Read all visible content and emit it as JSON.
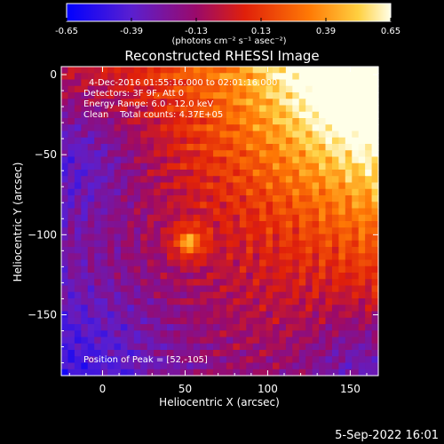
{
  "chart_data": {
    "type": "heatmap",
    "title": "Reconstructed RHESSI Image",
    "xlabel": "Heliocentric X (arcsec)",
    "ylabel": "Heliocentric Y (arcsec)",
    "xlim": [
      -25,
      167
    ],
    "ylim": [
      -188,
      5
    ],
    "x_ticks": [
      0,
      50,
      100,
      150
    ],
    "y_ticks": [
      0,
      -50,
      -100,
      -150
    ],
    "colorbar": {
      "min": -0.65,
      "max": 0.65,
      "ticks": [
        -0.65,
        -0.39,
        -0.13,
        0.13,
        0.39,
        0.65
      ],
      "tick_labels": [
        "-0.65",
        "-0.39",
        "-0.13",
        "0.13",
        "0.39",
        "0.65"
      ],
      "units_label": "(photons cm⁻² s⁻¹ asec⁻²)",
      "colormap": "blue-purple-red-orange-yellow-white"
    },
    "annotations": [
      "4-Dec-2016 01:55:16.000 to 02:01:16.000",
      "Detectors: 3F 9F, Att 0",
      "Energy Range: 6.0 - 12.0 keV",
      "Clean    Total counts: 4.37E+05"
    ],
    "peak": {
      "label": "Position of Peak = [52,-105]",
      "x": 52,
      "y": -105
    },
    "grid": false
  },
  "footer": {
    "date": "5-Sep-2022 16:01"
  }
}
